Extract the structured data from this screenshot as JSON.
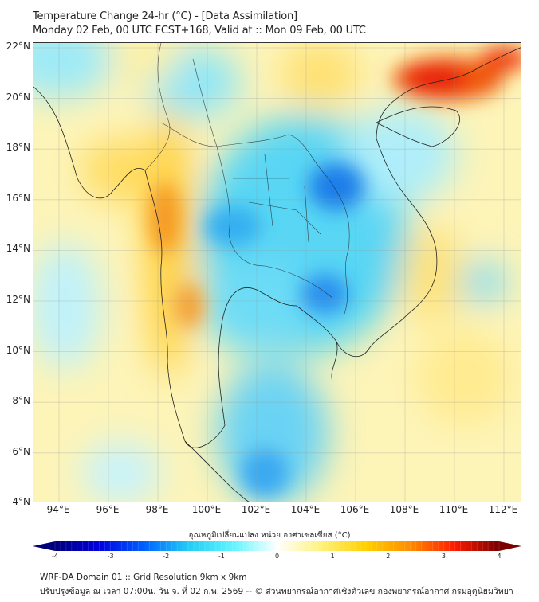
{
  "header": {
    "title": "Temperature Change 24-hr (°C) - [Data Assimilation]",
    "subtitle": "Monday 02 Feb, 00 UTC FCST+168, Valid at :: Mon 09 Feb, 00 UTC"
  },
  "map": {
    "lat_labels": [
      "22°N",
      "20°N",
      "18°N",
      "16°N",
      "14°N",
      "12°N",
      "10°N",
      "8°N",
      "6°N",
      "4°N"
    ],
    "lon_labels": [
      "94°E",
      "96°E",
      "98°E",
      "100°E",
      "102°E",
      "104°E",
      "106°E",
      "108°E",
      "110°E",
      "112°E"
    ],
    "extent_deg": {
      "lon": [
        93,
        112.75
      ],
      "lat": [
        3.8,
        22.2
      ]
    }
  },
  "colorbar": {
    "title": "อุณหภูมิเปลี่ยนแปลง หน่วย องศาเซลเซียส (°C)",
    "ticks": [
      "-4",
      "-3",
      "-2",
      "-1",
      "0",
      "1",
      "2",
      "3",
      "4"
    ],
    "range": [
      -4,
      4
    ],
    "colors": [
      "#00007a",
      "#0000e0",
      "#0060ff",
      "#22ccf5",
      "#60f4ff",
      "#ffffff",
      "#fff27a",
      "#ffd000",
      "#ff8c00",
      "#ff1a00",
      "#7a0000"
    ]
  },
  "footer": {
    "line1": "WRF-DA Domain 01 :: Grid Resolution 9km x 9km",
    "line2": "ปรับปรุงข้อมูล ณ เวลา 07:00น. วัน จ. ที่ 02 ก.พ. 2569 -- © ส่วนพยากรณ์อากาศเชิงตัวเลข กองพยากรณ์อากาศ กรมอุตุนิยมวิทยา"
  }
}
